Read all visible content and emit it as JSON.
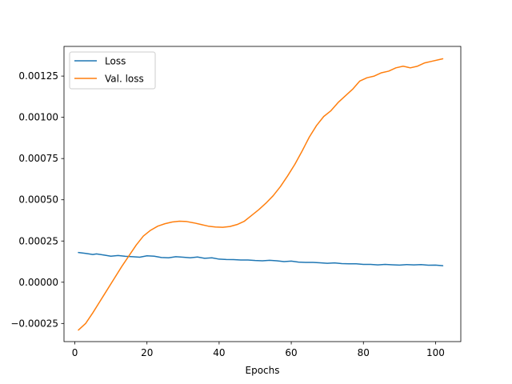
{
  "chart_data": {
    "type": "line",
    "title": "",
    "xlabel": "Epochs",
    "ylabel": "",
    "xlim": [
      -3,
      107
    ],
    "ylim": [
      -0.00036,
      0.00143
    ],
    "x_ticks": [
      0,
      20,
      40,
      60,
      80,
      100
    ],
    "x_tick_labels": [
      "0",
      "20",
      "40",
      "60",
      "80",
      "100"
    ],
    "y_ticks": [
      -0.00025,
      0,
      0.00025,
      0.0005,
      0.00075,
      0.001,
      0.00125
    ],
    "y_tick_labels": [
      "−0.00025",
      "0.00000",
      "0.00025",
      "0.00050",
      "0.00075",
      "0.00100",
      "0.00125"
    ],
    "grid": false,
    "legend_position": "top-left",
    "series": [
      {
        "name": "Loss",
        "color": "#1f77b4",
        "x": [
          1,
          3,
          5,
          6,
          8,
          10,
          12,
          14,
          16,
          18,
          20,
          22,
          24,
          26,
          28,
          30,
          32,
          34,
          36,
          38,
          40,
          42,
          44,
          46,
          48,
          50,
          52,
          54,
          56,
          58,
          60,
          62,
          64,
          66,
          68,
          70,
          72,
          74,
          76,
          78,
          80,
          82,
          84,
          86,
          88,
          90,
          92,
          94,
          96,
          98,
          100,
          102
        ],
        "values": [
          0.00018,
          0.000175,
          0.000168,
          0.000172,
          0.000165,
          0.000158,
          0.000162,
          0.000157,
          0.000155,
          0.000152,
          0.00016,
          0.000158,
          0.00015,
          0.000148,
          0.000155,
          0.000152,
          0.000148,
          0.000153,
          0.000145,
          0.000148,
          0.00014,
          0.000138,
          0.000137,
          0.000135,
          0.000135,
          0.000132,
          0.00013,
          0.000133,
          0.00013,
          0.000125,
          0.000128,
          0.000122,
          0.00012,
          0.00012,
          0.000118,
          0.000115,
          0.000117,
          0.000113,
          0.000112,
          0.000112,
          0.000108,
          0.000108,
          0.000105,
          0.000108,
          0.000106,
          0.000104,
          0.000107,
          0.000105,
          0.000107,
          0.000103,
          0.000104,
          0.0001
        ]
      },
      {
        "name": "Val. loss",
        "color": "#ff7f0e",
        "x": [
          1,
          3,
          5,
          7,
          9,
          11,
          13,
          15,
          17,
          19,
          21,
          23,
          25,
          27,
          29,
          31,
          33,
          35,
          37,
          39,
          41,
          43,
          45,
          47,
          49,
          51,
          53,
          55,
          57,
          59,
          61,
          63,
          65,
          67,
          69,
          71,
          73,
          75,
          77,
          79,
          81,
          83,
          85,
          87,
          89,
          91,
          93,
          95,
          97,
          99,
          101,
          102
        ],
        "values": [
          -0.00029,
          -0.00025,
          -0.000185,
          -0.000115,
          -4.5e-05,
          2.5e-05,
          9.5e-05,
          0.00016,
          0.000225,
          0.00028,
          0.000315,
          0.00034,
          0.000355,
          0.000365,
          0.00037,
          0.000368,
          0.00036,
          0.00035,
          0.00034,
          0.000335,
          0.000333,
          0.000338,
          0.00035,
          0.00037,
          0.000405,
          0.00044,
          0.00048,
          0.000525,
          0.00058,
          0.000645,
          0.000715,
          0.000795,
          0.00088,
          0.00095,
          0.001005,
          0.00104,
          0.00109,
          0.00113,
          0.00117,
          0.00122,
          0.00124,
          0.00125,
          0.00127,
          0.00128,
          0.0013,
          0.00131,
          0.0013,
          0.00131,
          0.00133,
          0.00134,
          0.00135,
          0.001355
        ]
      }
    ]
  }
}
